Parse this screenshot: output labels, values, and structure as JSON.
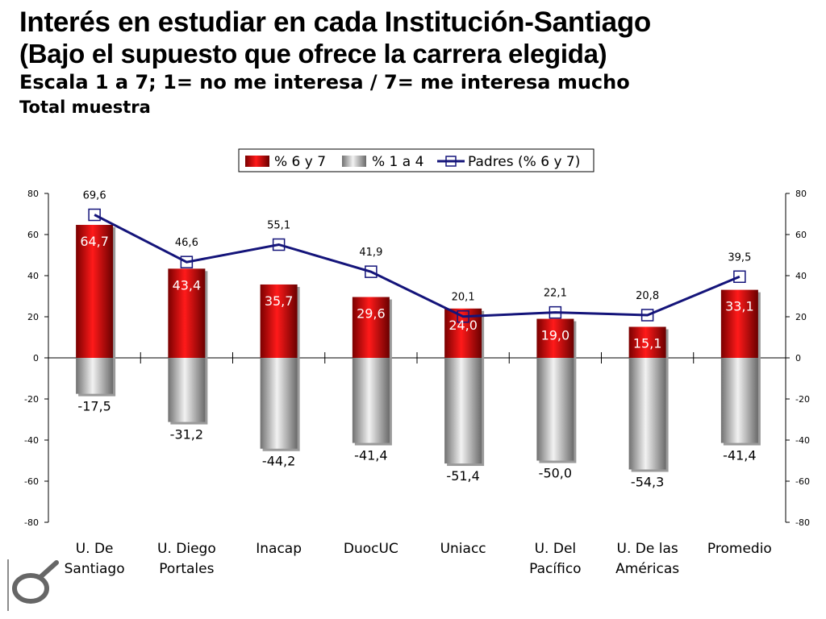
{
  "header": {
    "title_line1": "Interés en estudiar en cada Institución-Santiago",
    "title_line2": "(Bajo el supuesto que ofrece la carrera  elegida)",
    "subtitle": "Escala 1 a 7; 1= no me interesa / 7= me interesa mucho",
    "sample": "Total muestra"
  },
  "colors": {
    "bar_positive": "#e01010",
    "bar_negative": "#a8a8a8",
    "line": "#14147a",
    "text": "#000000",
    "label_on_red": "#ffffff"
  },
  "chart_data": {
    "type": "bar",
    "categories": [
      [
        "U. De",
        "Santiago"
      ],
      [
        "U. Diego",
        "Portales"
      ],
      [
        "Inacap"
      ],
      [
        "DuocUC"
      ],
      [
        "Uniacc"
      ],
      [
        "U. Del",
        "Pacífico"
      ],
      [
        "U. De las",
        "Américas"
      ],
      [
        "Promedio"
      ]
    ],
    "series": [
      {
        "name": "% 6 y 7",
        "kind": "bar",
        "values": [
          64.7,
          43.4,
          35.7,
          29.6,
          24.0,
          19.0,
          15.1,
          33.1
        ],
        "labels": [
          "64,7",
          "43,4",
          "35,7",
          "29,6",
          "24,0",
          "19,0",
          "15,1",
          "33,1"
        ]
      },
      {
        "name": "% 1 a 4",
        "kind": "bar",
        "values": [
          -17.5,
          -31.2,
          -44.2,
          -41.4,
          -51.4,
          -50.0,
          -54.3,
          -41.4
        ],
        "labels": [
          "-17,5",
          "-31,2",
          "-44,2",
          "-41,4",
          "-51,4",
          "-50,0",
          "-54,3",
          "-41,4"
        ]
      },
      {
        "name": "Padres (% 6 y 7)",
        "kind": "line",
        "values": [
          69.6,
          46.6,
          55.1,
          41.9,
          20.1,
          22.1,
          20.8,
          39.5
        ],
        "labels": [
          "69,6",
          "46,6",
          "55,1",
          "41,9",
          "20,1",
          "22,1",
          "20,8",
          "39,5"
        ]
      }
    ],
    "yticks": [
      "80",
      "60",
      "40",
      "20",
      "0",
      "-20",
      "-40",
      "-60",
      "-80"
    ],
    "ylim": [
      -80,
      80
    ],
    "legend_position": "top-center",
    "secondary_axis": true
  }
}
